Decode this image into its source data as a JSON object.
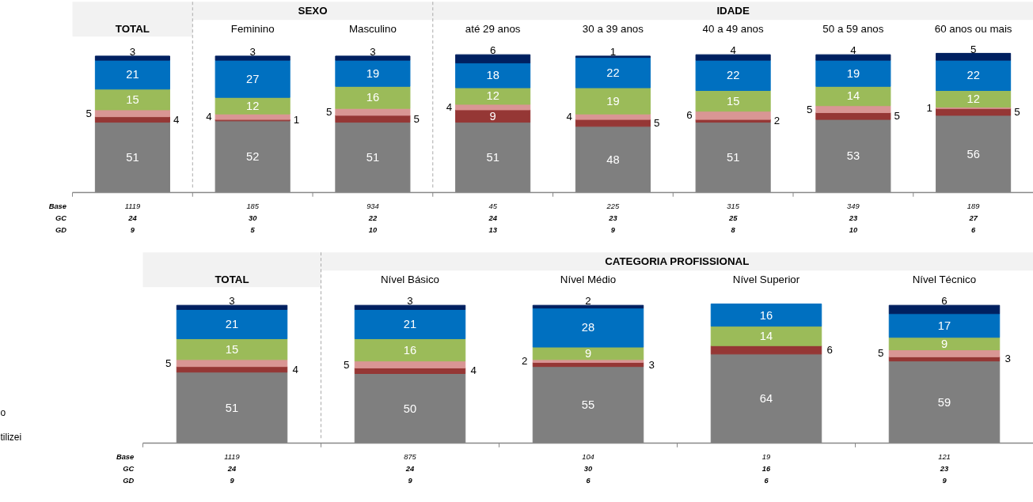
{
  "chart_data": [
    {
      "type": "bar",
      "stacked": true,
      "data_labels": true,
      "grid": false,
      "tick_labels": "x",
      "categories": [
        "TOTAL",
        "Feminino",
        "Masculino",
        "até 29 anos",
        "30 a 39 anos",
        "40 a 49 anos",
        "50 a 59 anos",
        "60 anos ou mais"
      ],
      "series": [
        {
          "color": "#7f7f7f",
          "values": [
            51,
            52,
            51,
            51,
            48,
            51,
            53,
            56
          ]
        },
        {
          "color": "#953735",
          "values": [
            4,
            1,
            5,
            9,
            5,
            2,
            5,
            5
          ]
        },
        {
          "color": "#d99694",
          "values": [
            5,
            4,
            5,
            4,
            4,
            6,
            5,
            1
          ]
        },
        {
          "color": "#9bbb59",
          "values": [
            15,
            12,
            16,
            12,
            19,
            15,
            14,
            12
          ]
        },
        {
          "color": "#0070c0",
          "values": [
            21,
            27,
            19,
            18,
            22,
            22,
            19,
            22
          ]
        },
        {
          "color": "#002060",
          "values": [
            3,
            3,
            3,
            6,
            1,
            4,
            4,
            5
          ]
        }
      ],
      "annotations": [
        "SEXO",
        "IDADE",
        "Base",
        "GC",
        "GD",
        "1119",
        "185",
        "934",
        "45",
        "225",
        "315",
        "349",
        "189",
        "24",
        "30",
        "22",
        "24",
        "23",
        "25",
        "23",
        "27",
        "9",
        "5",
        "10",
        "13",
        "9",
        "8",
        "10",
        "6"
      ]
    },
    {
      "type": "bar",
      "stacked": true,
      "data_labels": true,
      "grid": false,
      "tick_labels": "x",
      "categories": [
        "TOTAL",
        "Nível Básico",
        "Nível Médio",
        "Nível Superior",
        "Nível Técnico"
      ],
      "series": [
        {
          "color": "#7f7f7f",
          "values": [
            51,
            50,
            55,
            64,
            59
          ]
        },
        {
          "color": "#953735",
          "values": [
            4,
            4,
            3,
            6,
            3
          ]
        },
        {
          "color": "#d99694",
          "values": [
            5,
            5,
            2,
            null,
            5
          ]
        },
        {
          "color": "#9bbb59",
          "values": [
            15,
            16,
            9,
            14,
            9
          ]
        },
        {
          "color": "#0070c0",
          "values": [
            21,
            21,
            28,
            16,
            17
          ]
        },
        {
          "color": "#002060",
          "values": [
            3,
            3,
            2,
            null,
            6
          ]
        }
      ],
      "annotations": [
        "CATEGORIA PROFISSIONAL",
        "Base",
        "GC",
        "GD",
        "1119",
        "875",
        "104",
        "19",
        "121",
        "24",
        "24",
        "30",
        "16",
        "23",
        "9",
        "9",
        "6",
        "6",
        "9",
        "o",
        "tilizei"
      ]
    }
  ]
}
